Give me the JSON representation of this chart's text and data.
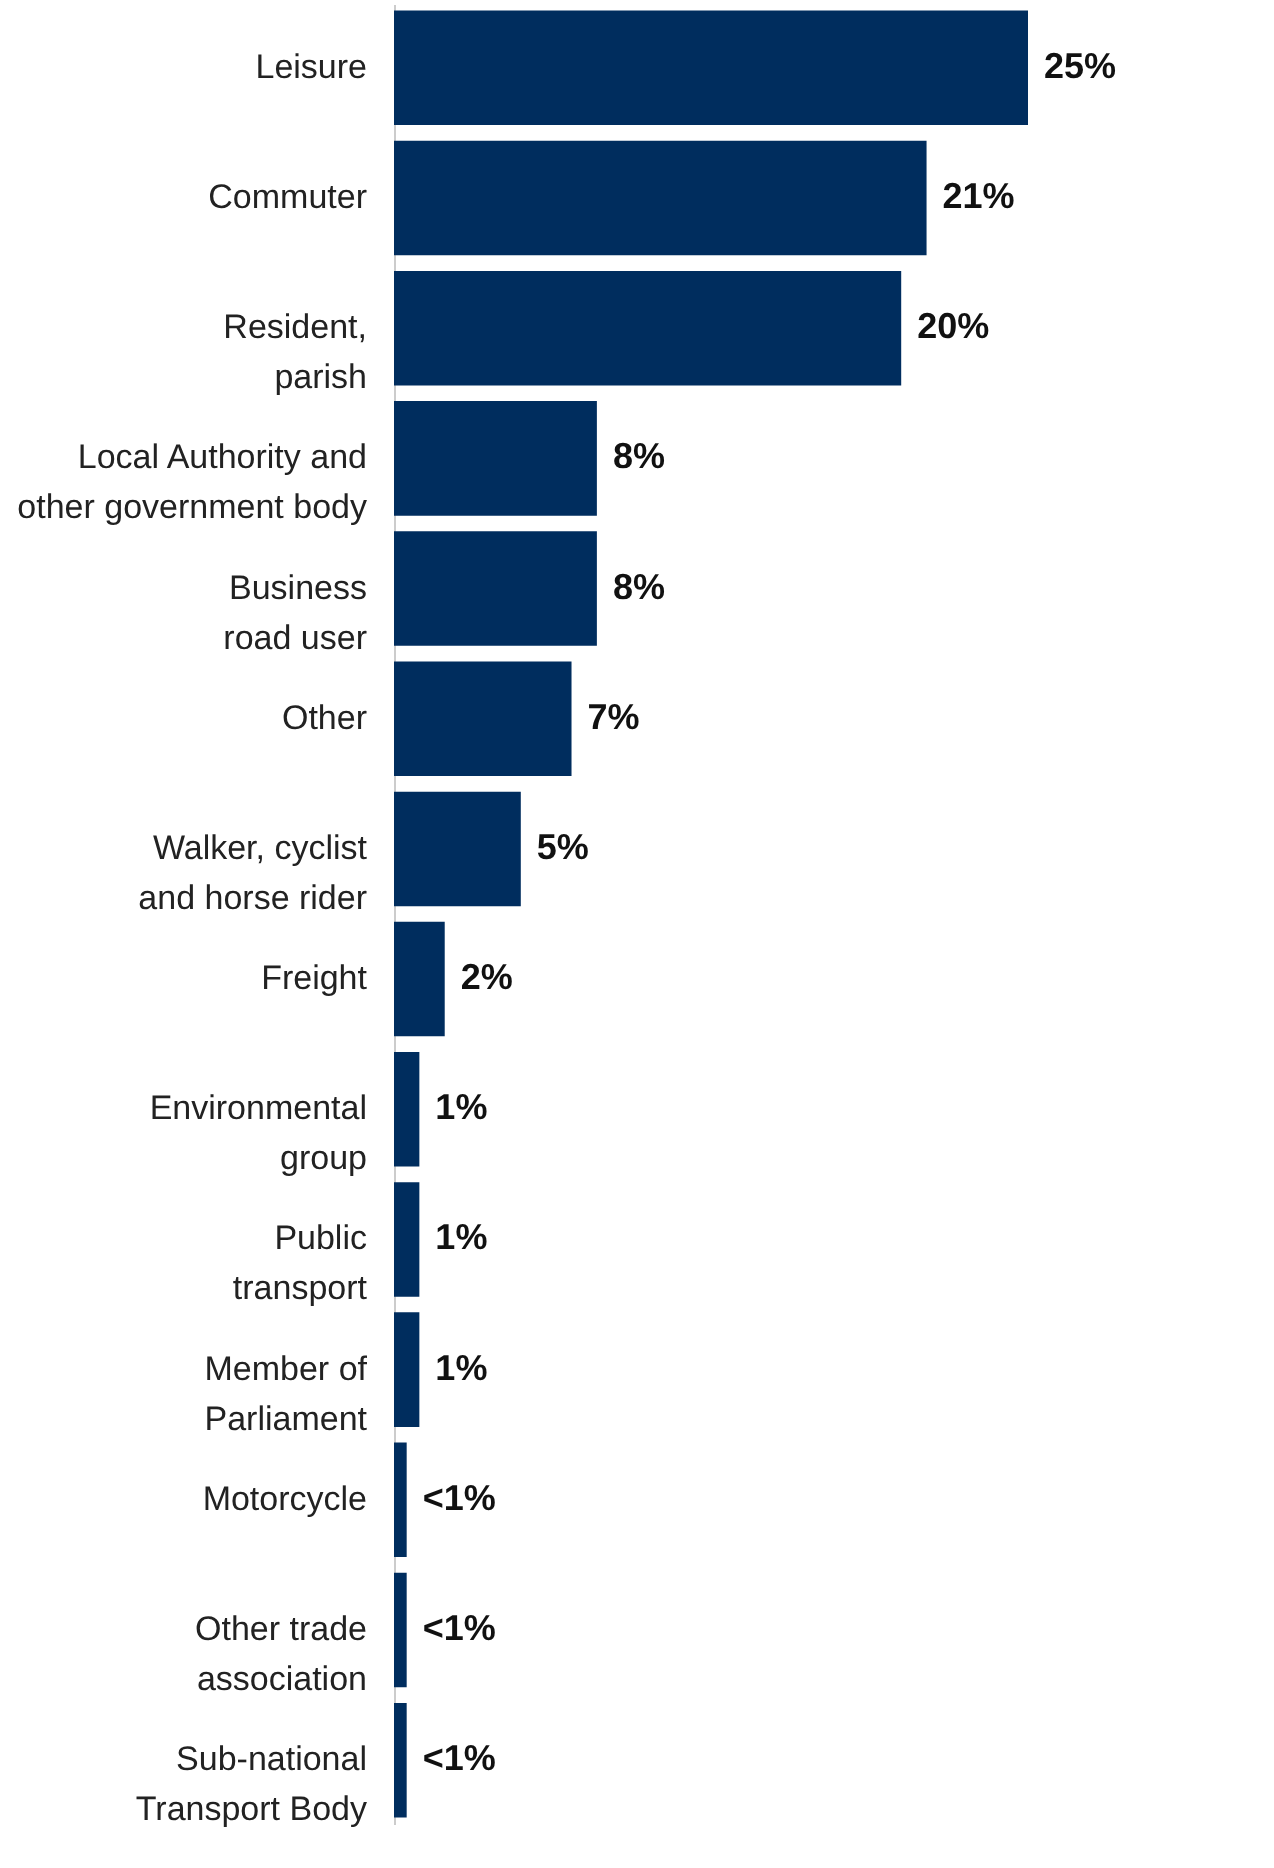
{
  "chart_data": {
    "type": "bar",
    "orientation": "horizontal",
    "categories": [
      "Leisure",
      "Commuter",
      "Resident,\nparish",
      "Local Authority and\nother government body",
      "Business\nroad user",
      "Other",
      "Walker, cyclist\nand horse rider",
      "Freight",
      "Environmental\ngroup",
      "Public\ntransport",
      "Member of\nParliament",
      "Motorcycle",
      "Other trade\nassociation",
      "Sub-national\nTransport Body"
    ],
    "values": [
      25,
      21,
      20,
      8,
      8,
      7,
      5,
      2,
      1,
      1,
      1,
      0.5,
      0.5,
      0.5
    ],
    "value_labels": [
      "25%",
      "21%",
      "20%",
      "8%",
      "8%",
      "7%",
      "5%",
      "2%",
      "1%",
      "1%",
      "1%",
      "<1%",
      "<1%",
      "<1%"
    ],
    "color": "#002d5e",
    "xlim": [
      0,
      25
    ],
    "tick_labels": "y"
  }
}
